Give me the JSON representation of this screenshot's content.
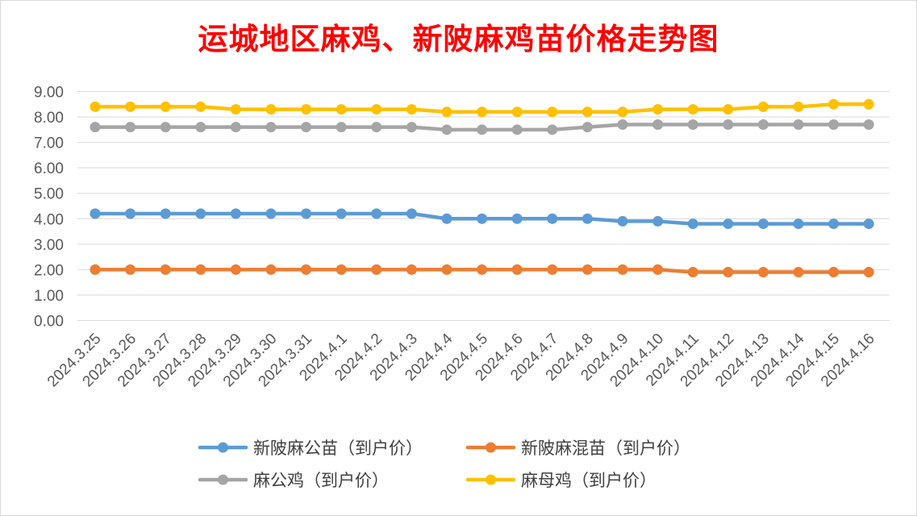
{
  "chart_data": {
    "type": "line",
    "title": "运城地区麻鸡、新陂麻鸡苗价格走势图",
    "categories": [
      "2024.3.25",
      "2024.3.26",
      "2024.3.27",
      "2024.3.28",
      "2024.3.29",
      "2024.3.30",
      "2024.3.31",
      "2024.4.1",
      "2024.4.2",
      "2024.4.3",
      "2024.4.4",
      "2024.4.5",
      "2024.4.6",
      "2024.4.7",
      "2024.4.8",
      "2024.4.9",
      "2024.4.10",
      "2024.4.11",
      "2024.4.12",
      "2024.4.13",
      "2024.4.14",
      "2024.4.15",
      "2024.4.16"
    ],
    "y_ticks": [
      "0.00",
      "1.00",
      "2.00",
      "3.00",
      "4.00",
      "5.00",
      "6.00",
      "7.00",
      "8.00",
      "9.00"
    ],
    "ylim": [
      0,
      9
    ],
    "grid": true,
    "legend_position": "bottom",
    "series": [
      {
        "name": "新陂麻公苗（到户价）",
        "color": "#5b9bd5",
        "values": [
          4.2,
          4.2,
          4.2,
          4.2,
          4.2,
          4.2,
          4.2,
          4.2,
          4.2,
          4.2,
          4.0,
          4.0,
          4.0,
          4.0,
          4.0,
          3.9,
          3.9,
          3.8,
          3.8,
          3.8,
          3.8,
          3.8,
          3.8
        ]
      },
      {
        "name": "新陂麻混苗（到户价）",
        "color": "#ed7d31",
        "values": [
          2.0,
          2.0,
          2.0,
          2.0,
          2.0,
          2.0,
          2.0,
          2.0,
          2.0,
          2.0,
          2.0,
          2.0,
          2.0,
          2.0,
          2.0,
          2.0,
          2.0,
          1.9,
          1.9,
          1.9,
          1.9,
          1.9,
          1.9
        ]
      },
      {
        "name": "麻公鸡（到户价）",
        "color": "#a5a5a5",
        "values": [
          7.6,
          7.6,
          7.6,
          7.6,
          7.6,
          7.6,
          7.6,
          7.6,
          7.6,
          7.6,
          7.5,
          7.5,
          7.5,
          7.5,
          7.6,
          7.7,
          7.7,
          7.7,
          7.7,
          7.7,
          7.7,
          7.7,
          7.7
        ]
      },
      {
        "name": "麻母鸡（到户价）",
        "color": "#ffc000",
        "values": [
          8.4,
          8.4,
          8.4,
          8.4,
          8.3,
          8.3,
          8.3,
          8.3,
          8.3,
          8.3,
          8.2,
          8.2,
          8.2,
          8.2,
          8.2,
          8.2,
          8.3,
          8.3,
          8.3,
          8.4,
          8.4,
          8.5,
          8.5
        ]
      }
    ]
  }
}
